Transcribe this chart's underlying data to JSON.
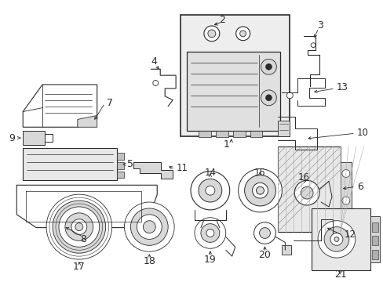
{
  "background_color": "#ffffff",
  "figsize": [
    4.89,
    3.6
  ],
  "dpi": 100,
  "gray": "#2a2a2a",
  "light_gray": "#aaaaaa",
  "fill_gray": "#d8d8d8",
  "box_fill": "#eeeeee"
}
